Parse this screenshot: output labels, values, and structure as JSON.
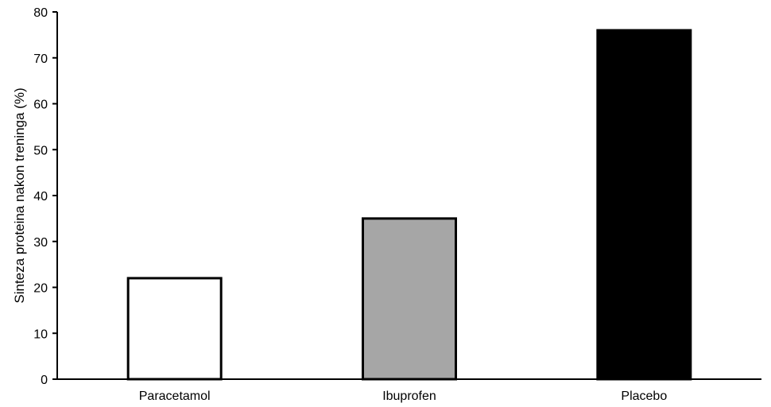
{
  "chart_data": {
    "type": "bar",
    "title": "",
    "xlabel": "",
    "ylabel": "Sinteza proteina nakon treninga (%)",
    "categories": [
      "Paracetamol",
      "Ibuprofen",
      "Placebo"
    ],
    "values": [
      22,
      35,
      76
    ],
    "bar_colors": [
      "#ffffff",
      "#a6a6a6",
      "#000000"
    ],
    "ylim": [
      0,
      80
    ],
    "yticks": [
      0,
      10,
      20,
      30,
      40,
      50,
      60,
      70,
      80
    ],
    "grid": false,
    "legend": "none"
  }
}
